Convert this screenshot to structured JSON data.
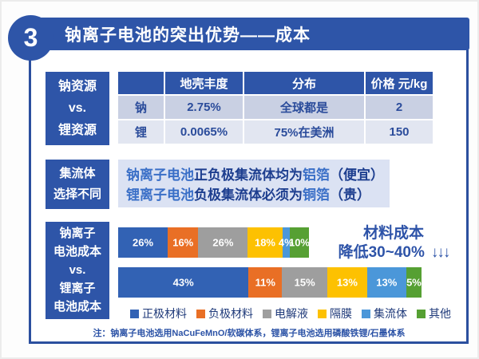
{
  "header": {
    "number": "3",
    "title": "钠离子电池的突出优势——成本"
  },
  "resource_section": {
    "label_lines": [
      "钠资源",
      "vs.",
      "锂资源"
    ],
    "table": {
      "columns": [
        "",
        "地壳丰度",
        "分布",
        "价格 元/kg"
      ],
      "rows": [
        [
          "钠",
          "2.75%",
          "全球都是",
          "2"
        ],
        [
          "锂",
          "0.0065%",
          "75%在美洲",
          "150"
        ]
      ]
    }
  },
  "collector_section": {
    "label_lines": [
      "集流体",
      "选择不同"
    ],
    "lines": [
      {
        "parts": [
          "钠离子电池",
          "正负极集流体均为",
          "铝箔",
          "（便宜）"
        ]
      },
      {
        "parts": [
          "锂离子电池",
          "负极集流体必须为",
          "铜箔",
          "（贵）"
        ]
      }
    ]
  },
  "cost_section": {
    "label_lines": [
      "钠离子",
      "电池成本",
      "vs.",
      "锂离子",
      "电池成本"
    ],
    "chart_data": {
      "type": "bar",
      "subtype": "horizontal-stacked",
      "unit": "%",
      "segments": [
        "正极材料",
        "负极材料",
        "电解液",
        "隔膜",
        "集流体",
        "其他"
      ],
      "colors": [
        "#3262b4",
        "#e96f25",
        "#9e9e9e",
        "#fdc101",
        "#4b97d9",
        "#56a033"
      ],
      "bars": [
        {
          "name": "钠离子电池成本",
          "relative_width": 0.63,
          "values": [
            26,
            16,
            26,
            18,
            4,
            10
          ]
        },
        {
          "name": "锂离子电池成本",
          "relative_width": 1.0,
          "values": [
            43,
            11,
            15,
            13,
            13,
            5
          ]
        }
      ],
      "legend_position": "bottom"
    },
    "annotation": {
      "line1": "材料成本",
      "line2": "降低30~40%",
      "arrows": "↓↓↓"
    },
    "note": "注：钠离子电池选用NaCuFeMnO/软碳体系，锂离子电池选用磷酸铁锂/石墨体系"
  },
  "theme": {
    "primary_blue": "#2e55a8",
    "border_blue": "#2b4f9e",
    "table_row_dark": "#c9d0e3",
    "table_row_light": "#e2e6f1",
    "panel_light": "#dbe2f3",
    "text_navy": "#1d3e8f",
    "text_highlight": "#3a6fc7"
  }
}
